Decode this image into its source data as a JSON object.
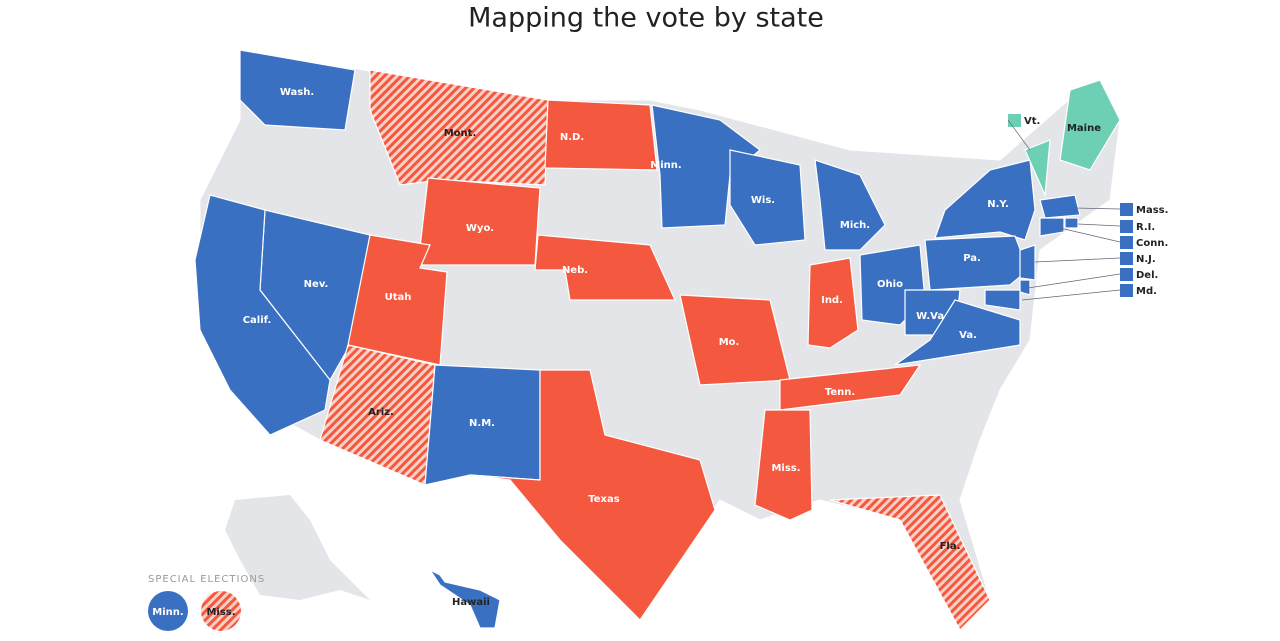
{
  "title": "Mapping the vote by state",
  "states": [
    {
      "label": "Wash.",
      "color": "#3a70c2"
    },
    {
      "label": "Mont.",
      "color": "#f4583f",
      "hatched": true
    },
    {
      "label": "N.D.",
      "color": "#f4583f"
    },
    {
      "label": "Minn.",
      "color": "#3a70c2"
    },
    {
      "label": "Wis.",
      "color": "#3a70c2"
    },
    {
      "label": "Mich.",
      "color": "#3a70c2"
    },
    {
      "label": "Wyo.",
      "color": "#f4583f"
    },
    {
      "label": "Nev.",
      "color": "#3a70c2"
    },
    {
      "label": "Calif.",
      "color": "#3a70c2"
    },
    {
      "label": "Utah",
      "color": "#f4583f"
    },
    {
      "label": "Neb.",
      "color": "#f4583f"
    },
    {
      "label": "Ind.",
      "color": "#f4583f"
    },
    {
      "label": "Ohio",
      "color": "#3a70c2"
    },
    {
      "label": "N.Y.",
      "color": "#3a70c2"
    },
    {
      "label": "Pa.",
      "color": "#3a70c2"
    },
    {
      "label": "W.Va.",
      "color": "#3a70c2"
    },
    {
      "label": "Va.",
      "color": "#3a70c2"
    },
    {
      "label": "Mo.",
      "color": "#f4583f"
    },
    {
      "label": "Tenn.",
      "color": "#f4583f"
    },
    {
      "label": "Miss.",
      "color": "#f4583f"
    },
    {
      "label": "Ariz.",
      "color": "#f4583f",
      "hatched": true
    },
    {
      "label": "N.M.",
      "color": "#3a70c2"
    },
    {
      "label": "Texas",
      "color": "#f4583f"
    },
    {
      "label": "Fla.",
      "color": "#f4583f",
      "hatched": true
    },
    {
      "label": "Vt.",
      "color": "#6dcfb4"
    },
    {
      "label": "Maine",
      "color": "#6dcfb4"
    },
    {
      "label": "Mass.",
      "color": "#3a70c2"
    },
    {
      "label": "R.I.",
      "color": "#3a70c2"
    },
    {
      "label": "Conn.",
      "color": "#3a70c2"
    },
    {
      "label": "N.J.",
      "color": "#3a70c2"
    },
    {
      "label": "Del.",
      "color": "#3a70c2"
    },
    {
      "label": "Md.",
      "color": "#3a70c2"
    },
    {
      "label": "Hawaii",
      "color": "#3a70c2"
    }
  ],
  "legend": {
    "title": "SPECIAL ELECTIONS",
    "items": [
      {
        "label": "Minn.",
        "color": "#3a70c2"
      },
      {
        "label": "Miss.",
        "color": "#f4583f",
        "hatched": true
      }
    ]
  }
}
